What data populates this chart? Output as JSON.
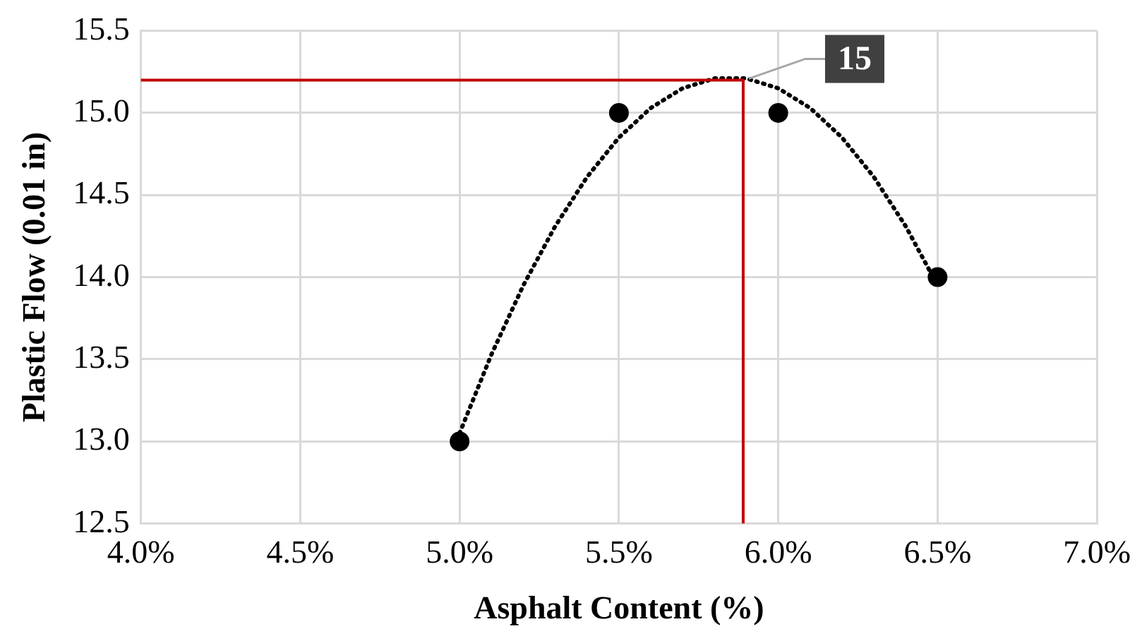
{
  "chart_data": {
    "type": "scatter",
    "xlabel": "Asphalt Content (%)",
    "ylabel": "Plastic Flow (0.01 in)",
    "x": [
      5.0,
      5.5,
      6.0,
      6.5
    ],
    "series": [
      {
        "type": "scatter",
        "color": "#000000",
        "marker": "circle",
        "values": [
          13,
          15,
          15,
          14
        ]
      },
      {
        "type": "line",
        "color": "#000000",
        "line_style": "dotted",
        "marker": "none",
        "x": [
          5.0,
          5.1,
          5.2,
          5.3,
          5.4,
          5.5,
          5.6,
          5.7,
          5.8,
          5.9,
          6.0,
          6.1,
          6.2,
          6.3,
          6.4,
          6.5
        ],
        "values": [
          13.05,
          13.53,
          13.95,
          14.31,
          14.61,
          14.85,
          15.03,
          15.15,
          15.21,
          15.21,
          15.15,
          15.03,
          14.85,
          14.61,
          14.31,
          13.95
        ]
      },
      {
        "type": "line",
        "color": "#c00000",
        "line_style": "solid",
        "marker": "none",
        "x": [
          4.0,
          5.89
        ],
        "values": [
          15.2,
          15.2
        ]
      },
      {
        "type": "line",
        "color": "#c00000",
        "line_style": "solid",
        "marker": "none",
        "x": [
          5.89,
          5.89
        ],
        "values": [
          12.5,
          15.2
        ]
      }
    ],
    "annotations": [
      {
        "text": "15",
        "x": 5.89,
        "y": 15.2
      }
    ],
    "xlim": [
      4.0,
      7.0
    ],
    "xticks": [
      {
        "value": 4.0,
        "label": "4.0%"
      },
      {
        "value": 4.5,
        "label": "4.5%"
      },
      {
        "value": 5.0,
        "label": "5.0%"
      },
      {
        "value": 5.5,
        "label": "5.5%"
      },
      {
        "value": 6.0,
        "label": "6.0%"
      },
      {
        "value": 6.5,
        "label": "6.5%"
      },
      {
        "value": 7.0,
        "label": "7.0%"
      }
    ],
    "ylim": [
      12.5,
      15.5
    ],
    "yticks": [
      12.5,
      {
        "value": 13,
        "label": "13.0"
      },
      13.5,
      {
        "value": 14,
        "label": "14.0"
      },
      14.5,
      {
        "value": 15,
        "label": "15.0"
      },
      15.5
    ],
    "grid": true,
    "legend": false
  }
}
